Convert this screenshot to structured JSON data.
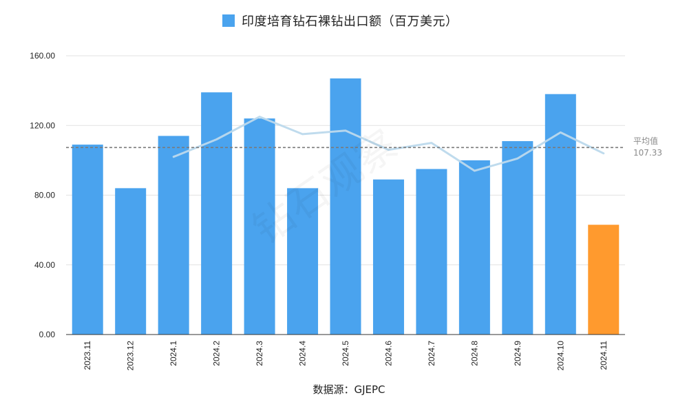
{
  "chart_data": {
    "type": "bar",
    "title": "印度培育钻石裸钻出口额（百万美元）",
    "categories": [
      "2023.11",
      "2023.12",
      "2024.1",
      "2024.2",
      "2024.3",
      "2024.4",
      "2024.5",
      "2024.6",
      "2024.7",
      "2024.8",
      "2024.9",
      "2024.10",
      "2024.11"
    ],
    "series": [
      {
        "name": "印度培育钻石裸钻出口额（百万美元）",
        "values": [
          109,
          84,
          114,
          139,
          124,
          84,
          147,
          89,
          95,
          100,
          111,
          138,
          63
        ],
        "color": "#4aa3ee",
        "highlight": {
          "index": 12,
          "color": "#ff9a2e"
        }
      }
    ],
    "trend_line": {
      "start_index": 2,
      "values": [
        102,
        112,
        125,
        115,
        117,
        106,
        110,
        94,
        101,
        116,
        104
      ],
      "color": "#bcd9ec"
    },
    "reference_line": {
      "label": "平均值",
      "value_text": "107.33",
      "value": 107.33,
      "color": "#7a7a7a",
      "style": "dashed"
    },
    "y_ticks": [
      "0.00",
      "40.00",
      "80.00",
      "120.00",
      "160.00"
    ],
    "ylim": [
      0,
      160
    ],
    "grid": true,
    "legend": "top-center",
    "source": "数据源：GJEPC",
    "watermark": "钻石观察"
  }
}
